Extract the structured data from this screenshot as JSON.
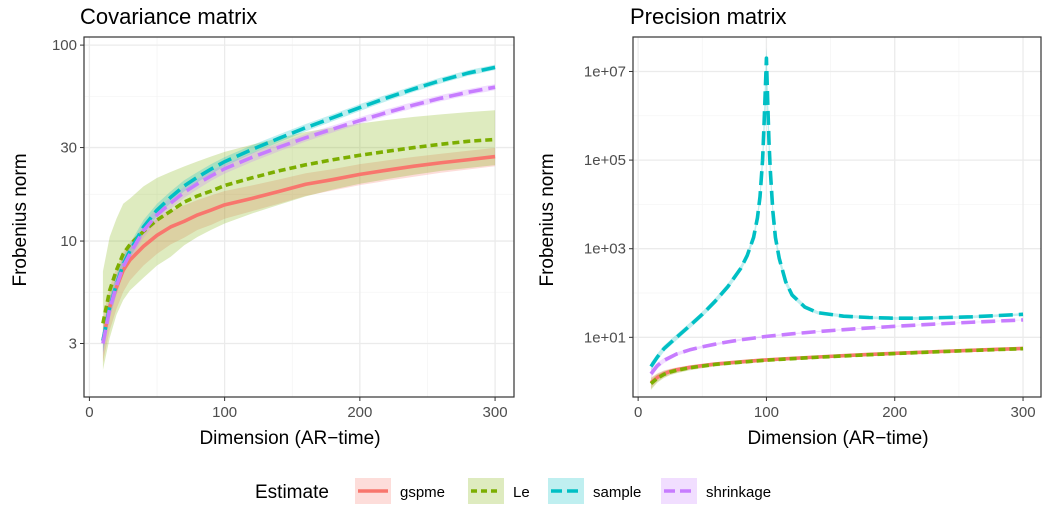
{
  "chart_data": [
    {
      "type": "line",
      "title": "Covariance matrix",
      "xlabel": "Dimension (AR−time)",
      "ylabel": "Frobenius norm",
      "y_scale": "log",
      "xlim": [
        -4,
        314
      ],
      "ylim": [
        1.6,
        110
      ],
      "x_ticks": [
        0,
        100,
        200,
        300
      ],
      "x_tick_labels": [
        "0",
        "100",
        "200",
        "300"
      ],
      "y_ticks": [
        3,
        10,
        30,
        100
      ],
      "y_tick_labels": [
        "3",
        "10",
        "30",
        "100"
      ],
      "grid": true,
      "series": [
        {
          "name": "gspme",
          "x": [
            10,
            15,
            20,
            25,
            30,
            40,
            50,
            60,
            70,
            80,
            90,
            100,
            120,
            140,
            160,
            180,
            200,
            220,
            240,
            260,
            280,
            300
          ],
          "y": [
            3.1,
            4.6,
            5.8,
            7.1,
            8.0,
            9.4,
            10.7,
            11.8,
            12.6,
            13.6,
            14.4,
            15.3,
            16.5,
            17.9,
            19.5,
            20.6,
            21.9,
            23.0,
            24.1,
            25.1,
            26.0,
            27.0
          ],
          "lower": [
            2.4,
            3.5,
            4.5,
            5.5,
            6.3,
            7.5,
            8.6,
            9.6,
            10.4,
            11.4,
            12.1,
            13.0,
            14.2,
            15.5,
            17.0,
            18.1,
            19.3,
            20.3,
            21.3,
            22.3,
            23.2,
            24.1
          ],
          "upper": [
            4.0,
            5.8,
            7.3,
            8.8,
            9.9,
            11.5,
            13.0,
            14.3,
            15.2,
            16.2,
            17.1,
            18.0,
            19.2,
            20.6,
            22.2,
            23.3,
            24.7,
            25.8,
            26.9,
            27.9,
            28.9,
            29.9
          ]
        },
        {
          "name": "Le",
          "x": [
            10,
            15,
            20,
            25,
            30,
            40,
            50,
            60,
            70,
            80,
            90,
            100,
            120,
            140,
            160,
            180,
            200,
            220,
            240,
            260,
            280,
            300
          ],
          "y": [
            3.8,
            5.6,
            7.1,
            8.6,
            9.6,
            11.2,
            12.8,
            14.2,
            15.8,
            17.0,
            18.0,
            19.2,
            21.0,
            22.8,
            24.5,
            26.0,
            27.4,
            28.7,
            30.0,
            31.2,
            32.3,
            33.0
          ],
          "lower": [
            2.2,
            3.2,
            4.2,
            5.0,
            5.6,
            6.5,
            7.5,
            8.3,
            9.5,
            10.5,
            11.4,
            12.3,
            13.8,
            15.3,
            16.9,
            18.3,
            19.6,
            20.7,
            21.8,
            22.8,
            23.6,
            24.4
          ],
          "upper": [
            7.0,
            10.5,
            13.0,
            15.5,
            16.5,
            19.0,
            21.0,
            22.5,
            24.0,
            25.5,
            27.0,
            28.5,
            31.0,
            33.5,
            36.0,
            38.0,
            39.8,
            41.5,
            43.0,
            44.3,
            45.5,
            46.5
          ]
        },
        {
          "name": "sample",
          "x": [
            10,
            15,
            20,
            25,
            30,
            40,
            50,
            60,
            70,
            80,
            90,
            100,
            120,
            140,
            160,
            180,
            200,
            220,
            240,
            260,
            280,
            300
          ],
          "y": [
            3.1,
            4.6,
            6.0,
            7.6,
            8.9,
            11.8,
            14.4,
            16.7,
            19.1,
            21.2,
            23.3,
            25.4,
            29.3,
            33.4,
            37.9,
            42.6,
            48.0,
            53.8,
            59.8,
            66.0,
            72.0,
            77.0
          ],
          "lower": [
            2.7,
            4.1,
            5.4,
            6.9,
            8.2,
            10.9,
            13.4,
            15.6,
            17.9,
            20.0,
            22.0,
            24.1,
            27.9,
            31.9,
            36.3,
            40.9,
            46.1,
            51.8,
            57.7,
            63.8,
            69.7,
            74.6
          ],
          "upper": [
            3.6,
            5.2,
            6.7,
            8.4,
            9.7,
            12.8,
            15.5,
            17.9,
            20.4,
            22.5,
            24.7,
            26.8,
            30.8,
            35.0,
            39.6,
            44.4,
            50.0,
            55.9,
            62.0,
            68.3,
            74.4,
            79.5
          ]
        },
        {
          "name": "shrinkage",
          "x": [
            10,
            15,
            20,
            25,
            30,
            40,
            50,
            60,
            70,
            80,
            90,
            100,
            120,
            140,
            160,
            180,
            200,
            220,
            240,
            260,
            280,
            300
          ],
          "y": [
            3.0,
            4.5,
            5.9,
            7.4,
            8.6,
            11.3,
            13.6,
            15.6,
            17.7,
            19.6,
            21.5,
            23.4,
            26.7,
            30.1,
            33.7,
            37.3,
            41.2,
            45.3,
            49.5,
            53.6,
            57.5,
            61.0
          ],
          "lower": [
            2.6,
            4.0,
            5.3,
            6.7,
            7.9,
            10.4,
            12.6,
            14.6,
            16.6,
            18.4,
            20.3,
            22.1,
            25.3,
            28.7,
            32.2,
            35.8,
            39.6,
            43.6,
            47.7,
            51.7,
            55.5,
            58.9
          ],
          "upper": [
            3.5,
            5.1,
            6.6,
            8.2,
            9.4,
            12.3,
            14.7,
            16.7,
            18.9,
            20.8,
            22.8,
            24.7,
            28.1,
            31.6,
            35.2,
            38.9,
            42.9,
            47.1,
            51.4,
            55.6,
            59.6,
            63.2
          ]
        }
      ]
    },
    {
      "type": "line",
      "title": "Precision matrix",
      "xlabel": "Dimension (AR−time)",
      "ylabel": "Frobenius norm",
      "y_scale": "log",
      "xlim": [
        -4,
        314
      ],
      "ylim": [
        0.45,
        60000000.0
      ],
      "x_ticks": [
        0,
        100,
        200,
        300
      ],
      "x_tick_labels": [
        "0",
        "100",
        "200",
        "300"
      ],
      "y_ticks": [
        10,
        1000,
        100000,
        10000000
      ],
      "y_tick_labels": [
        "1e+01",
        "1e+03",
        "1e+05",
        "1e+07"
      ],
      "grid": true,
      "series": [
        {
          "name": "gspme",
          "x": [
            10,
            15,
            20,
            25,
            30,
            40,
            50,
            60,
            70,
            80,
            90,
            100,
            120,
            140,
            160,
            180,
            200,
            220,
            240,
            260,
            280,
            300
          ],
          "y": [
            0.95,
            1.25,
            1.5,
            1.7,
            1.85,
            2.1,
            2.3,
            2.5,
            2.65,
            2.8,
            2.95,
            3.1,
            3.35,
            3.6,
            3.85,
            4.1,
            4.35,
            4.6,
            4.85,
            5.1,
            5.35,
            5.6
          ],
          "lower": [
            0.7,
            1.0,
            1.25,
            1.45,
            1.6,
            1.85,
            2.05,
            2.25,
            2.4,
            2.55,
            2.7,
            2.85,
            3.1,
            3.35,
            3.6,
            3.85,
            4.1,
            4.35,
            4.6,
            4.85,
            5.1,
            5.35
          ],
          "upper": [
            1.25,
            1.55,
            1.8,
            1.95,
            2.1,
            2.35,
            2.55,
            2.75,
            2.9,
            3.05,
            3.2,
            3.35,
            3.6,
            3.85,
            4.1,
            4.35,
            4.6,
            4.85,
            5.1,
            5.35,
            5.6,
            5.85
          ]
        },
        {
          "name": "Le",
          "x": [
            10,
            15,
            20,
            25,
            30,
            40,
            50,
            60,
            70,
            80,
            90,
            100,
            120,
            140,
            160,
            180,
            200,
            220,
            240,
            260,
            280,
            300
          ],
          "y": [
            0.9,
            1.2,
            1.45,
            1.65,
            1.8,
            2.05,
            2.25,
            2.45,
            2.6,
            2.75,
            2.9,
            3.05,
            3.3,
            3.55,
            3.8,
            4.05,
            4.3,
            4.55,
            4.8,
            5.05,
            5.3,
            5.55
          ],
          "lower": [
            0.65,
            0.95,
            1.2,
            1.4,
            1.55,
            1.8,
            2.0,
            2.2,
            2.35,
            2.5,
            2.65,
            2.8,
            3.05,
            3.3,
            3.55,
            3.8,
            4.05,
            4.3,
            4.55,
            4.8,
            5.05,
            5.3
          ],
          "upper": [
            1.2,
            1.5,
            1.75,
            1.9,
            2.05,
            2.3,
            2.5,
            2.7,
            2.85,
            3.0,
            3.15,
            3.3,
            3.55,
            3.8,
            4.05,
            4.3,
            4.55,
            4.8,
            5.05,
            5.3,
            5.55,
            5.8
          ]
        },
        {
          "name": "sample",
          "x": [
            10,
            15,
            20,
            30,
            40,
            50,
            60,
            70,
            80,
            85,
            90,
            93,
            95,
            97,
            98,
            99,
            100,
            101,
            102,
            103,
            105,
            107,
            110,
            115,
            120,
            130,
            140,
            160,
            180,
            200,
            220,
            240,
            260,
            280,
            300
          ],
          "y": [
            2.2,
            3.6,
            5.5,
            10,
            18,
            33,
            65,
            140,
            360,
            700,
            1800,
            5000,
            15000,
            100000,
            500000,
            3000000,
            20000000,
            2000000,
            250000,
            60000,
            7000,
            1800,
            600,
            180,
            90,
            48,
            36,
            30,
            28,
            27,
            27,
            28,
            29,
            31,
            33
          ],
          "lower": [
            1.8,
            3.0,
            4.7,
            8.6,
            15.5,
            28.5,
            56,
            120,
            310,
            600,
            1500,
            4000,
            11000,
            60000,
            200000,
            800000,
            3000000,
            600000,
            120000,
            35000,
            4800,
            1400,
            480,
            150,
            78,
            43,
            33,
            28,
            26,
            25,
            25,
            26,
            27,
            29,
            31
          ],
          "upper": [
            2.7,
            4.3,
            6.5,
            11.7,
            21,
            38,
            76,
            165,
            420,
            820,
            2200,
            6500,
            22000,
            180000,
            1200000,
            8000000,
            35000000,
            5000000,
            550000,
            110000,
            10000,
            2300,
            760,
            215,
            104,
            54,
            39,
            33,
            30,
            29,
            29,
            30,
            31,
            33,
            35
          ]
        },
        {
          "name": "shrinkage",
          "x": [
            10,
            15,
            20,
            30,
            40,
            50,
            60,
            70,
            80,
            90,
            100,
            120,
            140,
            160,
            180,
            200,
            220,
            240,
            260,
            280,
            300
          ],
          "y": [
            1.5,
            2.3,
            3.0,
            4.2,
            5.2,
            6.1,
            7.0,
            7.9,
            8.8,
            9.6,
            10.5,
            12.0,
            13.5,
            14.9,
            16.3,
            17.7,
            19.1,
            20.5,
            21.9,
            23.3,
            24.7
          ],
          "lower": [
            1.2,
            1.95,
            2.6,
            3.8,
            4.8,
            5.7,
            6.6,
            7.5,
            8.4,
            9.2,
            10.1,
            11.6,
            13.1,
            14.5,
            15.9,
            17.3,
            18.7,
            20.1,
            21.5,
            22.9,
            24.3
          ],
          "upper": [
            1.9,
            2.7,
            3.4,
            4.6,
            5.6,
            6.5,
            7.4,
            8.3,
            9.2,
            10.0,
            10.9,
            12.4,
            13.9,
            15.3,
            16.7,
            18.1,
            19.5,
            20.9,
            22.3,
            23.7,
            25.1
          ]
        }
      ]
    }
  ],
  "legend": {
    "title": "Estimate",
    "position": "bottom",
    "items": [
      {
        "label": "gspme",
        "color": "#F8766D",
        "dash": "solid"
      },
      {
        "label": "Le",
        "color": "#7CAE00",
        "dash": "short-dash"
      },
      {
        "label": "sample",
        "color": "#00BFC4",
        "dash": "long-dash"
      },
      {
        "label": "shrinkage",
        "color": "#C77CFF",
        "dash": "long-dash"
      }
    ]
  },
  "colors": {
    "gspme": "#F8766D",
    "Le": "#7CAE00",
    "sample": "#00BFC4",
    "shrinkage": "#C77CFF",
    "grid_major": "#EBEBEB",
    "panel_border": "#333333"
  }
}
